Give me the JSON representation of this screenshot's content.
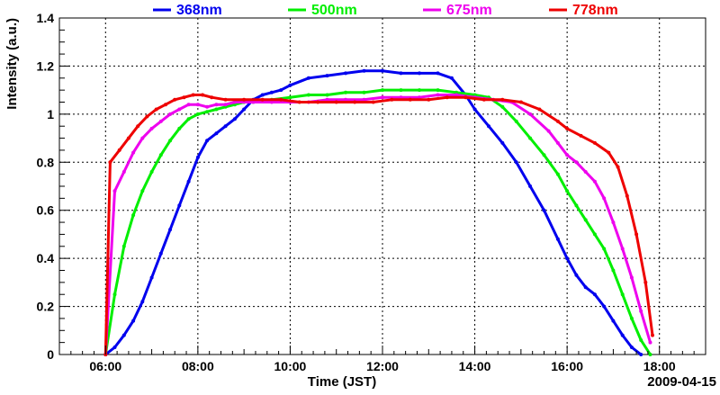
{
  "chart_data": {
    "type": "scatter",
    "title": "",
    "xlabel": "Time (JST)",
    "ylabel": "Intensity (a.u.)",
    "date_label": "2009-04-15",
    "xlim": [
      5.0,
      19.0
    ],
    "ylim": [
      0,
      1.4
    ],
    "grid": true,
    "legend_position": "top",
    "x_ticks": [
      {
        "value": 6,
        "label": "06:00"
      },
      {
        "value": 8,
        "label": "08:00"
      },
      {
        "value": 10,
        "label": "10:00"
      },
      {
        "value": 12,
        "label": "12:00"
      },
      {
        "value": 14,
        "label": "14:00"
      },
      {
        "value": 16,
        "label": "16:00"
      },
      {
        "value": 18,
        "label": "18:00"
      }
    ],
    "y_ticks": [
      {
        "value": 0,
        "label": "0"
      },
      {
        "value": 0.2,
        "label": "0.2"
      },
      {
        "value": 0.4,
        "label": "0.4"
      },
      {
        "value": 0.6,
        "label": "0.6"
      },
      {
        "value": 0.8,
        "label": "0.8"
      },
      {
        "value": 1.0,
        "label": "1"
      },
      {
        "value": 1.2,
        "label": "1.2"
      },
      {
        "value": 1.4,
        "label": "1.4"
      }
    ],
    "series": [
      {
        "name": "368nm",
        "color": "#0000ee",
        "x": [
          6.0,
          6.2,
          6.4,
          6.6,
          6.8,
          7.0,
          7.2,
          7.4,
          7.6,
          7.8,
          8.0,
          8.2,
          8.4,
          8.6,
          8.8,
          9.0,
          9.2,
          9.4,
          9.6,
          9.8,
          10.0,
          10.4,
          10.8,
          11.2,
          11.6,
          12.0,
          12.4,
          12.8,
          13.2,
          13.5,
          13.8,
          14.0,
          14.3,
          14.6,
          14.9,
          15.2,
          15.5,
          15.8,
          16.0,
          16.2,
          16.4,
          16.6,
          16.8,
          17.0,
          17.2,
          17.4,
          17.6
        ],
        "y": [
          0.0,
          0.03,
          0.08,
          0.14,
          0.22,
          0.32,
          0.42,
          0.52,
          0.62,
          0.72,
          0.82,
          0.89,
          0.92,
          0.95,
          0.98,
          1.02,
          1.06,
          1.08,
          1.09,
          1.1,
          1.12,
          1.15,
          1.16,
          1.17,
          1.18,
          1.18,
          1.17,
          1.17,
          1.17,
          1.15,
          1.08,
          1.02,
          0.95,
          0.88,
          0.8,
          0.7,
          0.6,
          0.48,
          0.4,
          0.33,
          0.28,
          0.25,
          0.2,
          0.14,
          0.08,
          0.03,
          0.0
        ]
      },
      {
        "name": "500nm",
        "color": "#00ee00",
        "x": [
          6.0,
          6.2,
          6.4,
          6.6,
          6.8,
          7.0,
          7.2,
          7.4,
          7.6,
          7.8,
          8.0,
          8.2,
          8.4,
          8.6,
          8.8,
          9.0,
          9.2,
          9.6,
          10.0,
          10.4,
          10.8,
          11.2,
          11.6,
          12.0,
          12.4,
          12.8,
          13.2,
          13.6,
          14.0,
          14.3,
          14.6,
          14.9,
          15.2,
          15.5,
          15.8,
          16.0,
          16.2,
          16.4,
          16.6,
          16.8,
          17.0,
          17.2,
          17.4,
          17.6,
          17.8
        ],
        "y": [
          0.0,
          0.25,
          0.45,
          0.58,
          0.68,
          0.76,
          0.83,
          0.89,
          0.94,
          0.98,
          1.0,
          1.01,
          1.02,
          1.03,
          1.04,
          1.05,
          1.05,
          1.06,
          1.07,
          1.08,
          1.08,
          1.09,
          1.09,
          1.1,
          1.1,
          1.1,
          1.1,
          1.09,
          1.08,
          1.07,
          1.03,
          0.97,
          0.9,
          0.83,
          0.75,
          0.68,
          0.62,
          0.56,
          0.5,
          0.44,
          0.35,
          0.25,
          0.15,
          0.06,
          0.0
        ]
      },
      {
        "name": "675nm",
        "color": "#ee00ee",
        "x": [
          6.0,
          6.2,
          6.4,
          6.6,
          6.8,
          7.0,
          7.2,
          7.4,
          7.6,
          7.8,
          8.0,
          8.2,
          8.4,
          8.6,
          8.8,
          9.2,
          9.6,
          10.0,
          10.4,
          10.8,
          11.2,
          11.6,
          12.0,
          12.4,
          12.8,
          13.2,
          13.6,
          14.0,
          14.4,
          14.8,
          15.2,
          15.6,
          15.8,
          16.0,
          16.2,
          16.4,
          16.6,
          16.8,
          17.0,
          17.2,
          17.4,
          17.6,
          17.8
        ],
        "y": [
          0.0,
          0.68,
          0.76,
          0.84,
          0.9,
          0.94,
          0.97,
          1.0,
          1.02,
          1.04,
          1.04,
          1.03,
          1.04,
          1.04,
          1.05,
          1.05,
          1.05,
          1.05,
          1.05,
          1.06,
          1.06,
          1.06,
          1.07,
          1.07,
          1.07,
          1.08,
          1.08,
          1.07,
          1.06,
          1.05,
          1.0,
          0.93,
          0.88,
          0.83,
          0.8,
          0.76,
          0.72,
          0.65,
          0.55,
          0.44,
          0.32,
          0.18,
          0.05
        ]
      },
      {
        "name": "778nm",
        "color": "#ee0000",
        "x": [
          6.0,
          6.1,
          6.3,
          6.5,
          6.7,
          6.9,
          7.1,
          7.3,
          7.5,
          7.7,
          7.9,
          8.1,
          8.3,
          8.6,
          9.0,
          9.4,
          9.8,
          10.2,
          10.6,
          11.0,
          11.4,
          11.8,
          12.2,
          12.6,
          13.0,
          13.4,
          13.8,
          14.2,
          14.6,
          15.0,
          15.4,
          15.8,
          16.0,
          16.3,
          16.6,
          16.9,
          17.1,
          17.3,
          17.5,
          17.7,
          17.85
        ],
        "y": [
          0.0,
          0.8,
          0.85,
          0.9,
          0.95,
          0.99,
          1.02,
          1.04,
          1.06,
          1.07,
          1.08,
          1.08,
          1.07,
          1.06,
          1.06,
          1.06,
          1.06,
          1.05,
          1.05,
          1.05,
          1.05,
          1.05,
          1.06,
          1.06,
          1.06,
          1.07,
          1.07,
          1.06,
          1.06,
          1.05,
          1.02,
          0.97,
          0.94,
          0.91,
          0.88,
          0.84,
          0.78,
          0.66,
          0.5,
          0.3,
          0.08
        ]
      }
    ]
  }
}
